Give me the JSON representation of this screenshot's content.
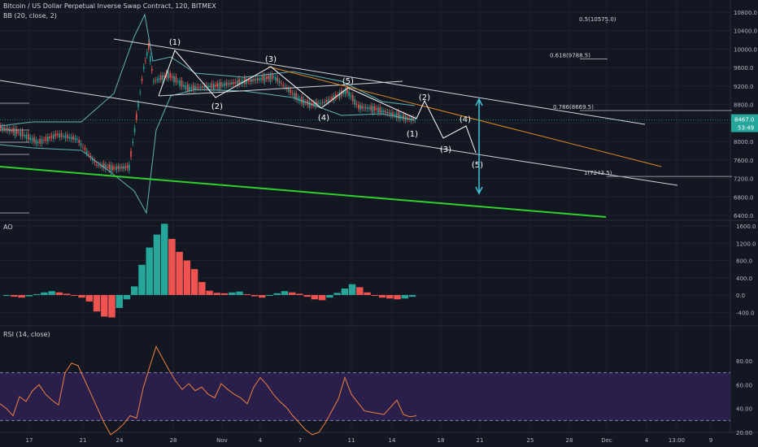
{
  "header": {
    "title": "Bitcoin / US Dollar Perpetual Inverse Swap Contract, 120, BITMEX",
    "indicator": "BB (20, close, 2)"
  },
  "panes": {
    "ao_label": "AO",
    "rsi_label": "RSI (14, close)"
  },
  "price_badge": {
    "value": "8467.0",
    "countdown": "53:49"
  },
  "colors": {
    "background": "#131722",
    "up": "#26a69a",
    "down": "#ef5350",
    "bb": "#5fb3b3",
    "trendline": "#d1d4dc",
    "support_line": "#2fd12f",
    "orange_line": "#e08a1e",
    "target_arrow": "#3fc3d8",
    "rsi_line": "#f0823c",
    "rsi_band": "#2a1e4a"
  },
  "chart_data": [
    {
      "type": "candlestick",
      "title": "Bitcoin / US Dollar Perpetual Inverse Swap Contract, 120, BITMEX",
      "x_ticks": [
        "17",
        "21",
        "24",
        "28",
        "Nov",
        "4",
        "7",
        "11",
        "14",
        "18",
        "21",
        "25",
        "28",
        "Dec",
        "4",
        "13:00",
        "9"
      ],
      "y_ticks": [
        6400,
        6800,
        7200,
        7600,
        8000,
        8400,
        8800,
        9200,
        9600,
        10000,
        10400,
        10800
      ],
      "ylim": [
        6300,
        10900
      ],
      "last_price": 8467.0,
      "close_path": [
        {
          "x": "Oct 14",
          "y": 8300
        },
        {
          "x": "Oct 16",
          "y": 8200
        },
        {
          "x": "Oct 18",
          "y": 7980
        },
        {
          "x": "Oct 20",
          "y": 8150
        },
        {
          "x": "Oct 22",
          "y": 8050
        },
        {
          "x": "Oct 23",
          "y": 7500
        },
        {
          "x": "Oct 24",
          "y": 7420
        },
        {
          "x": "Oct 25",
          "y": 7450
        },
        {
          "x": "Oct 26",
          "y": 9600
        },
        {
          "x": "Oct 26b",
          "y": 10050
        },
        {
          "x": "Oct 27",
          "y": 9300
        },
        {
          "x": "Oct 28",
          "y": 9450
        },
        {
          "x": "Oct 30",
          "y": 9150
        },
        {
          "x": "Nov 1",
          "y": 9200
        },
        {
          "x": "Nov 3",
          "y": 9300
        },
        {
          "x": "Nov 5",
          "y": 9400
        },
        {
          "x": "Nov 7",
          "y": 8900
        },
        {
          "x": "Nov 8",
          "y": 8800
        },
        {
          "x": "Nov 9",
          "y": 8850
        },
        {
          "x": "Nov 10",
          "y": 9100
        },
        {
          "x": "Nov 11",
          "y": 8750
        },
        {
          "x": "Nov 13",
          "y": 8700
        },
        {
          "x": "Nov 14",
          "y": 8600
        },
        {
          "x": "Nov 15",
          "y": 8500
        },
        {
          "x": "Nov 16",
          "y": 8467
        }
      ],
      "fib_levels": [
        {
          "label": "0.5(10575.0)",
          "value": 10575.0
        },
        {
          "label": "0.618(9788.5)",
          "value": 9788.5
        },
        {
          "label": "0.786(8669.5)",
          "value": 8669.5
        },
        {
          "label": "1(7243.5)",
          "value": 7243.5
        }
      ],
      "wave_labels": [
        "(1)",
        "(2)",
        "(3)",
        "(4)",
        "(5)",
        "(1)",
        "(2)",
        "(3)",
        "(4)",
        "(5)"
      ]
    },
    {
      "type": "bar",
      "title": "AO",
      "y_ticks": [
        -400,
        0,
        400,
        800,
        1200,
        1600
      ],
      "ylim": [
        -560,
        1700
      ],
      "values": [
        -20,
        -40,
        -60,
        -30,
        20,
        60,
        90,
        60,
        30,
        -10,
        -60,
        -150,
        -380,
        -500,
        -520,
        -300,
        -100,
        200,
        700,
        1100,
        1400,
        1650,
        1300,
        1000,
        800,
        600,
        300,
        100,
        50,
        40,
        60,
        80,
        20,
        -30,
        -60,
        -20,
        40,
        90,
        60,
        30,
        -40,
        -100,
        -120,
        -60,
        50,
        150,
        250,
        180,
        60,
        -20,
        -60,
        -80,
        -100,
        -80,
        -40
      ]
    },
    {
      "type": "line",
      "title": "RSI (14, close)",
      "y_ticks": [
        20,
        40,
        60,
        80
      ],
      "ylim": [
        12,
        95
      ],
      "band": [
        30,
        70
      ],
      "values": [
        44,
        40,
        34,
        50,
        46,
        55,
        60,
        52,
        47,
        43,
        70,
        78,
        76,
        64,
        52,
        40,
        28,
        18,
        22,
        27,
        34,
        32,
        57,
        75,
        92,
        82,
        72,
        63,
        56,
        61,
        55,
        58,
        52,
        49,
        61,
        56,
        52,
        49,
        44,
        58,
        66,
        60,
        52,
        46,
        41,
        34,
        28,
        22,
        18,
        20,
        28,
        38,
        48,
        66,
        52,
        45,
        38,
        37,
        36,
        35,
        41,
        47,
        35,
        33,
        34
      ]
    }
  ]
}
